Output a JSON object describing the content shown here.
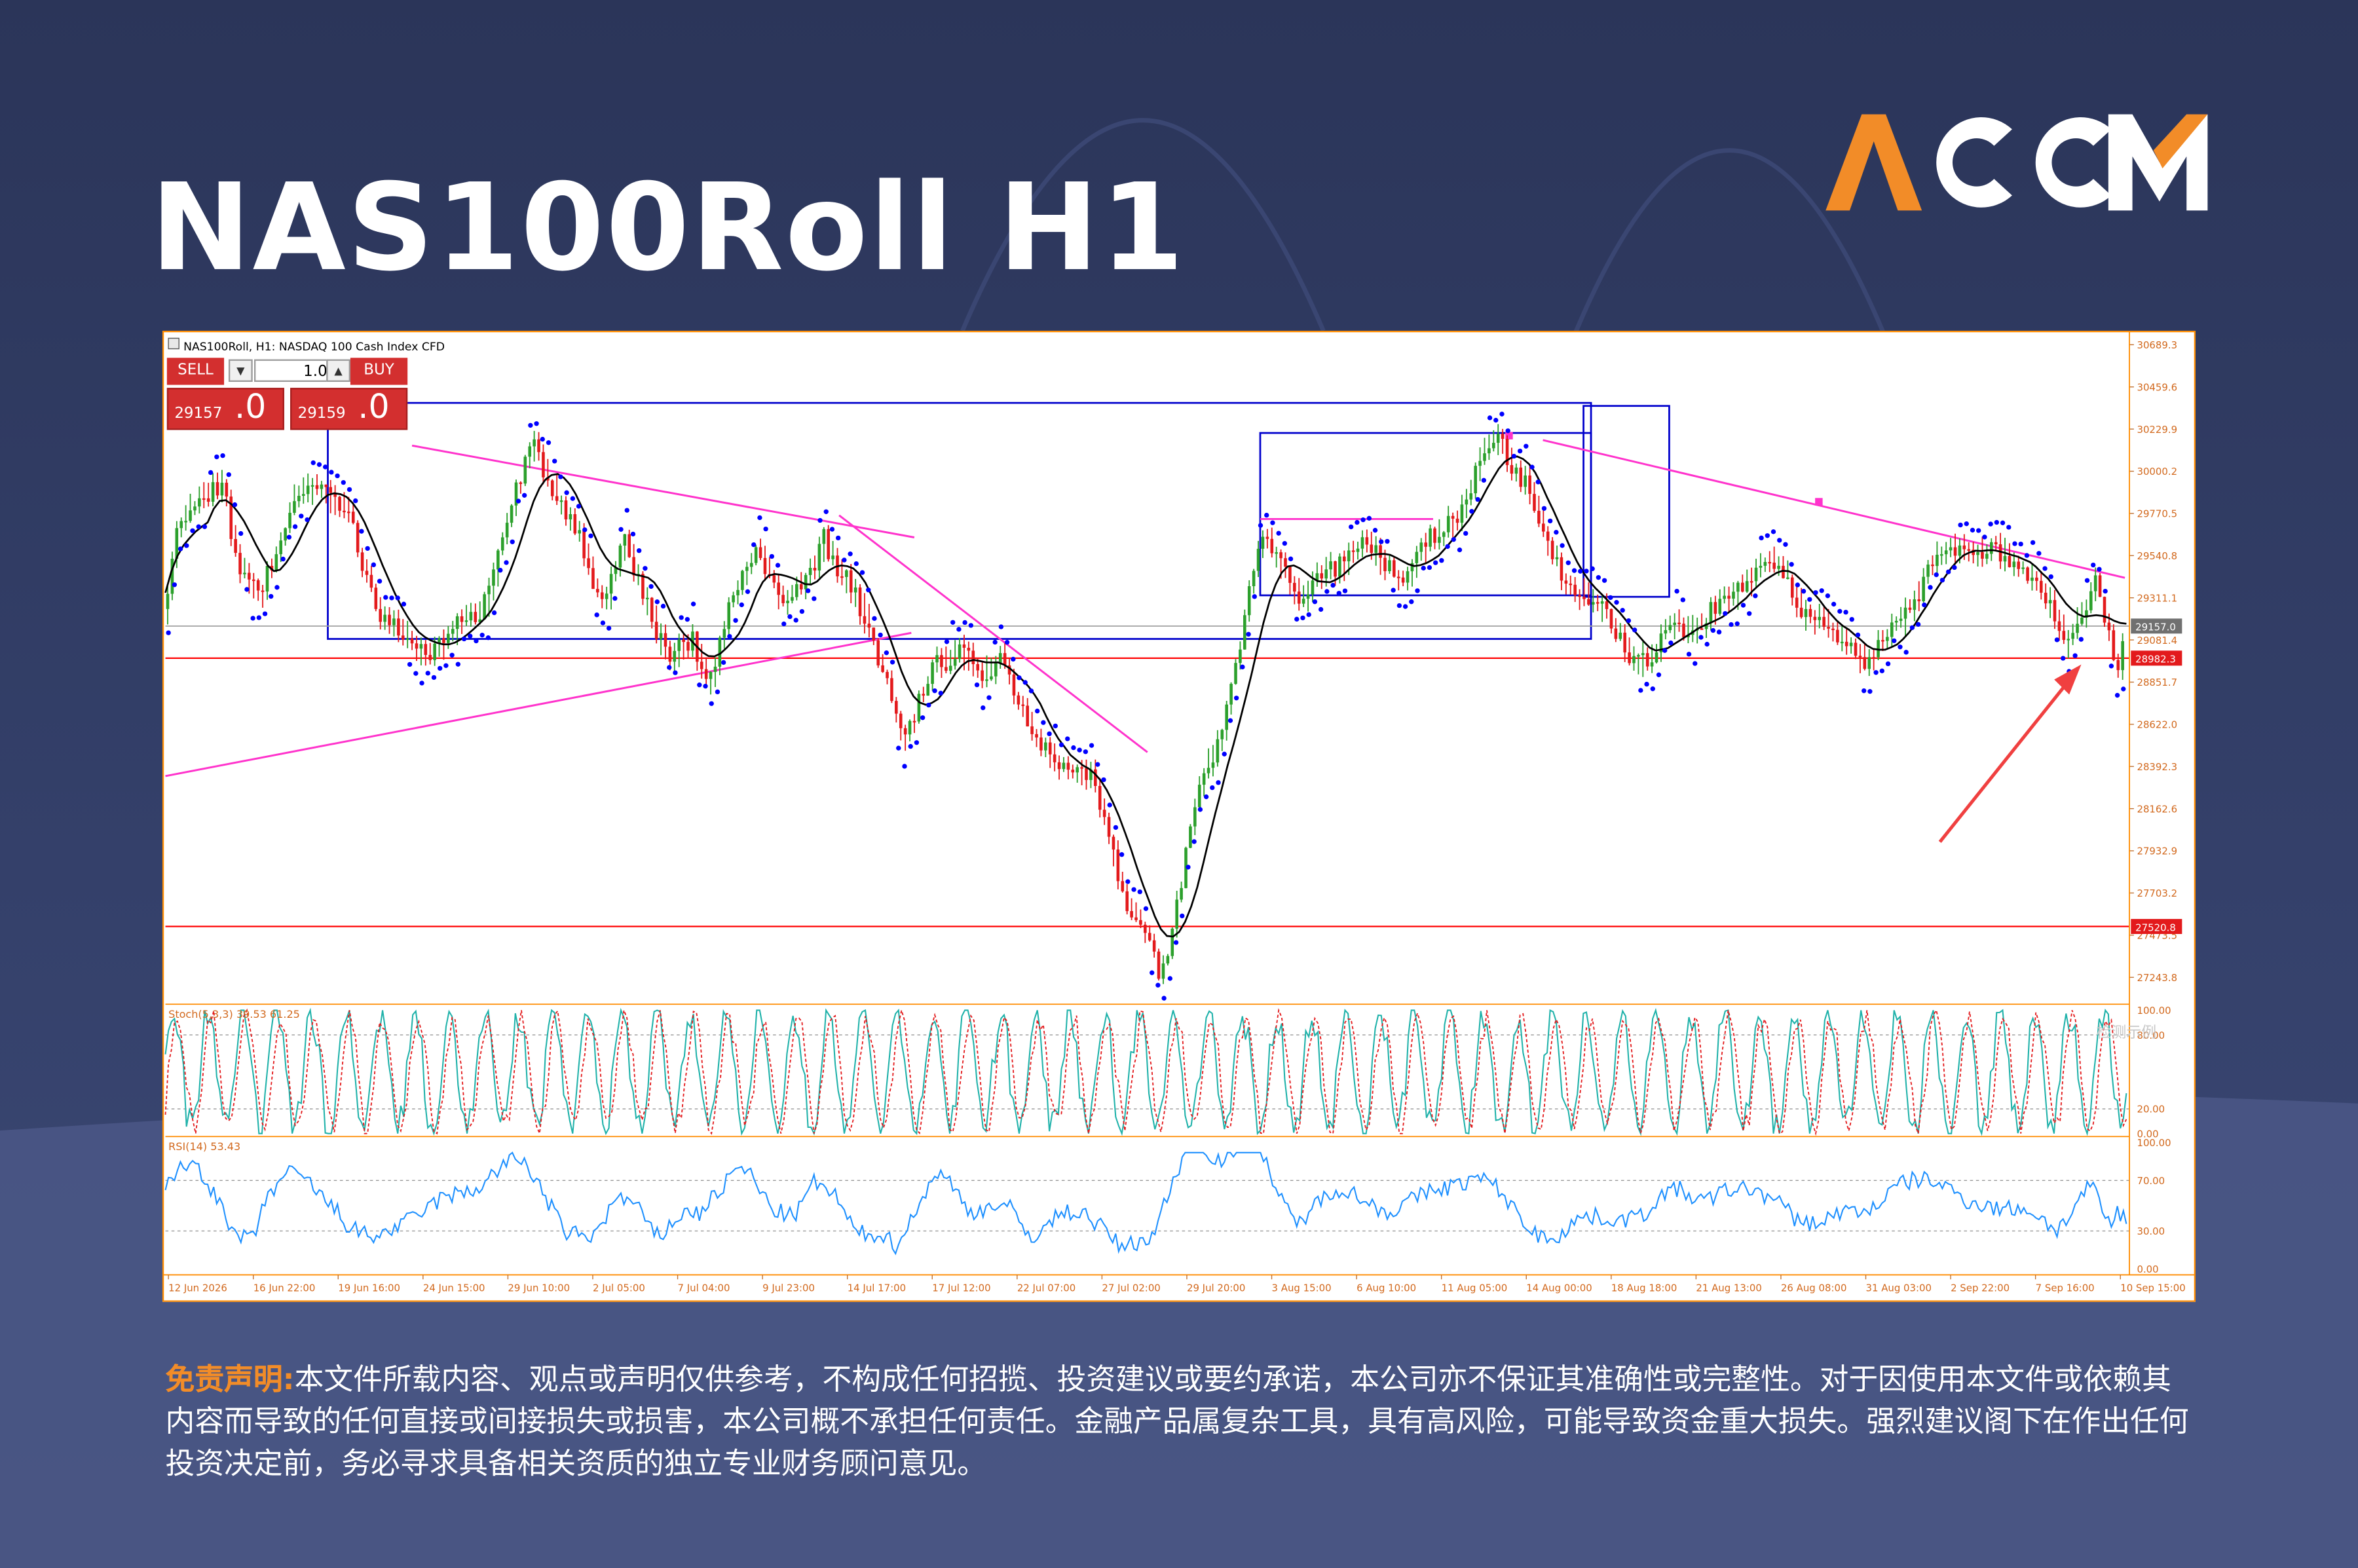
{
  "page": {
    "title": "NAS100Roll H1",
    "brand": "ACCM",
    "disclaimer_label": "免责声明:",
    "disclaimer_text": "本文件所载内容、观点或声明仅供参考，不构成任何招揽、投资建议或要约承诺，本公司亦不保证其准确性或完整性。对于因使用本文件或依赖其内容而导致的任何直接或间接损失或损害，本公司概不承担任何责任。金融产品属复杂工具，具有高风险，可能导致资金重大损失。强烈建议阁下在作出任何投资决定前，务必寻求具备相关资质的独立专业财务顾问意见。"
  },
  "colors": {
    "brand_orange": "#f28c28",
    "bull_candle": "#2ca02c",
    "bear_candle": "#e31a1c",
    "sar_dots": "#0000ff",
    "trend_lines": "#ff33cc",
    "level_lines": "#ff0000",
    "range_boxes": "#0000cc",
    "stoch_main": "#20b2aa",
    "stoch_signal": "#e31a1c",
    "rsi_line": "#1e90ff",
    "axis_text": "#d2691e"
  },
  "terminal": {
    "header": "NAS100Roll, H1:  NASDAQ 100 Cash Index CFD",
    "sell_label": "SELL",
    "buy_label": "BUY",
    "volume": "1.00",
    "sell_price_small": "29157",
    "sell_price_big": ".0",
    "buy_price_small": "29159",
    "buy_price_big": ".0",
    "watermark": "检测示例"
  },
  "chart_data": {
    "type": "candlestick",
    "symbol": "NAS100Roll",
    "timeframe": "H1",
    "ylim": [
      27130,
      30700
    ],
    "price_ticks": [
      "30689.3",
      "30459.6",
      "30229.9",
      "30000.2",
      "29770.5",
      "29540.8",
      "29311.1",
      "29081.4",
      "28851.7",
      "28622.0",
      "28392.3",
      "28162.6",
      "27932.9",
      "27703.2",
      "27473.5",
      "27243.8"
    ],
    "x_labels": [
      "12 Jun 2026",
      "16 Jun 22:00",
      "19 Jun 16:00",
      "24 Jun 15:00",
      "29 Jun 10:00",
      "2 Jul 05:00",
      "7 Jul 04:00",
      "9 Jul 23:00",
      "14 Jul 17:00",
      "17 Jul 12:00",
      "22 Jul 07:00",
      "27 Jul 02:00",
      "29 Jul 20:00",
      "3 Aug 15:00",
      "6 Aug 10:00",
      "11 Aug 05:00",
      "14 Aug 00:00",
      "18 Aug 18:00",
      "21 Aug 13:00",
      "26 Aug 08:00",
      "31 Aug 03:00",
      "2 Sep 22:00",
      "7 Sep 16:00",
      "10 Sep 15:00"
    ],
    "current_price": 29157.0,
    "horizontal_levels": [
      28982.3,
      27520.8
    ],
    "level_labels": [
      "28982.3",
      "27520.8"
    ],
    "current_price_label": "29157.0",
    "path": [
      [
        0,
        29250
      ],
      [
        10,
        29700
      ],
      [
        25,
        29900
      ],
      [
        38,
        29950
      ],
      [
        48,
        29450
      ],
      [
        62,
        29350
      ],
      [
        85,
        29800
      ],
      [
        100,
        29950
      ],
      [
        107,
        29900
      ],
      [
        120,
        29750
      ],
      [
        140,
        29300
      ],
      [
        165,
        29000
      ],
      [
        190,
        29100
      ],
      [
        210,
        29250
      ],
      [
        230,
        29800
      ],
      [
        245,
        30150
      ],
      [
        260,
        29900
      ],
      [
        275,
        29600
      ],
      [
        290,
        29300
      ],
      [
        305,
        29600
      ],
      [
        315,
        29350
      ],
      [
        335,
        29000
      ],
      [
        350,
        29050
      ],
      [
        360,
        28850
      ],
      [
        375,
        29300
      ],
      [
        395,
        29550
      ],
      [
        410,
        29300
      ],
      [
        425,
        29350
      ],
      [
        437,
        29650
      ],
      [
        450,
        29450
      ],
      [
        470,
        29050
      ],
      [
        480,
        28900
      ],
      [
        490,
        28500
      ],
      [
        500,
        28700
      ],
      [
        510,
        28950
      ],
      [
        525,
        29050
      ],
      [
        540,
        28850
      ],
      [
        555,
        29000
      ],
      [
        565,
        28800
      ],
      [
        575,
        28500
      ],
      [
        590,
        28450
      ],
      [
        605,
        28350
      ],
      [
        615,
        28300
      ],
      [
        630,
        27900
      ],
      [
        640,
        27600
      ],
      [
        650,
        27450
      ],
      [
        660,
        27250
      ],
      [
        670,
        27600
      ],
      [
        680,
        28100
      ],
      [
        690,
        28350
      ],
      [
        700,
        28550
      ],
      [
        710,
        28950
      ],
      [
        720,
        29400
      ],
      [
        730,
        29650
      ],
      [
        740,
        29500
      ],
      [
        755,
        29300
      ],
      [
        770,
        29450
      ],
      [
        790,
        29600
      ],
      [
        805,
        29500
      ],
      [
        820,
        29450
      ],
      [
        845,
        29650
      ],
      [
        865,
        29900
      ],
      [
        875,
        30100
      ],
      [
        885,
        30150
      ],
      [
        895,
        30050
      ],
      [
        905,
        29900
      ],
      [
        915,
        29600
      ],
      [
        925,
        29450
      ],
      [
        940,
        29350
      ],
      [
        955,
        29200
      ],
      [
        970,
        29050
      ],
      [
        985,
        28950
      ],
      [
        1000,
        29200
      ],
      [
        1015,
        29150
      ],
      [
        1030,
        29250
      ],
      [
        1045,
        29400
      ],
      [
        1060,
        29500
      ],
      [
        1075,
        29450
      ],
      [
        1090,
        29200
      ],
      [
        1105,
        29100
      ],
      [
        1120,
        29050
      ],
      [
        1130,
        28950
      ],
      [
        1140,
        29050
      ],
      [
        1155,
        29250
      ],
      [
        1165,
        29400
      ],
      [
        1175,
        29550
      ],
      [
        1195,
        29600
      ],
      [
        1210,
        29550
      ],
      [
        1225,
        29500
      ],
      [
        1240,
        29450
      ],
      [
        1250,
        29250
      ],
      [
        1260,
        29050
      ],
      [
        1270,
        29250
      ],
      [
        1280,
        29400
      ],
      [
        1285,
        29250
      ],
      [
        1292,
        28950
      ],
      [
        1296,
        28900
      ],
      [
        1300,
        29150
      ]
    ],
    "indicators": {
      "stoch": {
        "label": "Stoch(5,3,3) 39.53 61.25",
        "main": 39.53,
        "signal": 61.25,
        "levels": [
          80,
          20
        ],
        "ticks": [
          "100.00",
          "80.00",
          "20.00",
          "0.00"
        ]
      },
      "rsi": {
        "label": "RSI(14) 53.43",
        "value": 53.43,
        "levels": [
          70,
          30
        ],
        "ticks": [
          "100.00",
          "70.00",
          "30.00",
          "0.00"
        ]
      }
    }
  }
}
